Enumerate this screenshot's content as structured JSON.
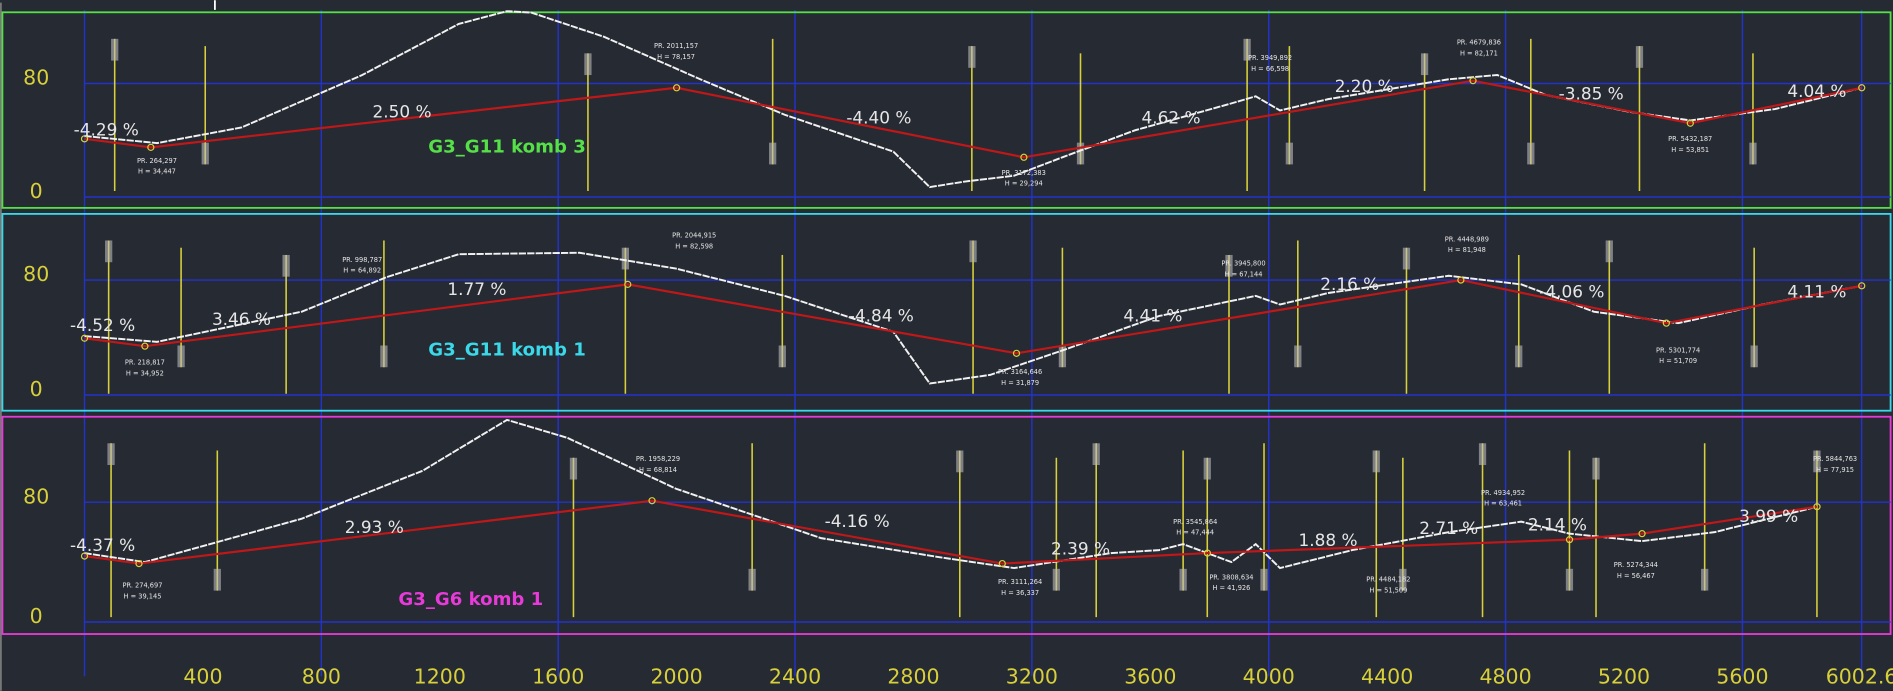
{
  "x_axis": {
    "lim": [
      0,
      6002.6
    ],
    "ticks": [
      400,
      800,
      1200,
      1600,
      2000,
      2400,
      2800,
      3200,
      3600,
      4000,
      4400,
      4800,
      5200,
      5600,
      6002.6
    ]
  },
  "panels": [
    {
      "title": "G3_G11 komb 3",
      "color": "#55e048",
      "yticks": [
        0,
        80
      ],
      "grades": [
        "-4.29 %",
        "2.50 %",
        "-4.40 %",
        "4.62 %",
        "2.20 %",
        "-3.85 %",
        "4.04 %"
      ],
      "vertices": [
        {
          "station": "PR. 264,297",
          "height": "H = 34,447"
        },
        {
          "station": "PR. 2011,157",
          "height": "H = 78,157"
        },
        {
          "station": "PR. 3172,383",
          "height": "H = 29,294"
        },
        {
          "station": "PR. 3949,892",
          "height": "H = 66,598"
        },
        {
          "station": "PR. 4679,836",
          "height": "H = 82,171"
        },
        {
          "station": "PR. 5432,187",
          "height": "H = 53,851"
        }
      ],
      "grade_line": {
        "x": [
          0,
          224,
          2000,
          3173,
          4690,
          5424,
          6003
        ],
        "y": [
          41,
          35,
          77,
          28,
          82,
          52,
          77
        ]
      },
      "terrain": {
        "x": [
          0,
          245,
          530,
          938,
          1264,
          1427,
          1509,
          1754,
          2080,
          2365,
          2732,
          2855,
          2977,
          3140,
          3303,
          3548,
          3874,
          3956,
          4038,
          4201,
          4608,
          4772,
          4935,
          5220,
          5424,
          5710,
          6003
        ],
        "y": [
          43,
          38,
          49,
          86,
          122,
          131,
          130,
          113,
          83,
          58,
          32,
          7,
          11,
          15,
          28,
          47,
          66,
          71,
          61,
          69,
          83,
          86,
          72,
          60,
          54,
          62,
          77
        ]
      }
    },
    {
      "title": "G3_G11 komb 1",
      "color": "#3ad8e8",
      "yticks": [
        0,
        80
      ],
      "grades": [
        "-4.52 %",
        "3.46 %",
        "1.77 %",
        "-4.84 %",
        "4.41 %",
        "2.16 %",
        "-4.06 %",
        "4.11 %"
      ],
      "vertices": [
        {
          "station": "PR. 218,817",
          "height": "H = 34,952"
        },
        {
          "station": "PR. 998,787",
          "height": "H = 64,892"
        },
        {
          "station": "PR. 2044,915",
          "height": "H = 82,598"
        },
        {
          "station": "PR. 3164,646",
          "height": "H = 31,879"
        },
        {
          "station": "PR. 3945,800",
          "height": "H = 67,144"
        },
        {
          "station": "PR. 4448,989",
          "height": "H = 81,948"
        },
        {
          "station": "PR. 5301,774",
          "height": "H = 51,709"
        }
      ],
      "grade_line": {
        "x": [
          0,
          204,
          1835,
          3148,
          4649,
          5343,
          6003
        ],
        "y": [
          39.5,
          34,
          77,
          29,
          80,
          50,
          76
        ]
      },
      "terrain": {
        "x": [
          0,
          245,
          734,
          1020,
          1264,
          1672,
          1998,
          2365,
          2732,
          2855,
          3059,
          3303,
          3630,
          3956,
          4038,
          4201,
          4608,
          4853,
          5098,
          5383,
          5669,
          6003
        ],
        "y": [
          41,
          37,
          58,
          82,
          98,
          99,
          88,
          69,
          44,
          8,
          14,
          31,
          55,
          69,
          63,
          71,
          83,
          77,
          58,
          50,
          63,
          76
        ]
      }
    },
    {
      "title": "G3_G6 komb 1",
      "color": "#e83ad8",
      "yticks": [
        0,
        80
      ],
      "grades": [
        "-4.37 %",
        "2.93 %",
        "-4.16 %",
        "2.39 %",
        "1.88 %",
        "2.71 %",
        "2.14 %",
        "3.99 %"
      ],
      "vertices": [
        {
          "station": "PR. 274,697",
          "height": "H = 39,145"
        },
        {
          "station": "PR. 1958,229",
          "height": "H = 68,814"
        },
        {
          "station": "PR. 3111,264",
          "height": "H = 36,337"
        },
        {
          "station": "PR. 3545,864",
          "height": "H = 47,444"
        },
        {
          "station": "PR. 3808,634",
          "height": "H = 41,926"
        },
        {
          "station": "PR. 4484,182",
          "height": "H = 51,509"
        },
        {
          "station": "PR. 4934,952",
          "height": "H = 63,461"
        },
        {
          "station": "PR. 5274,344",
          "height": "H = 56,467"
        },
        {
          "station": "PR. 5844,763",
          "height": "H = 77,915"
        }
      ],
      "grade_line": {
        "x": [
          0,
          184,
          1917,
          3100,
          3793,
          5016,
          5261,
          5852
        ],
        "y": [
          44,
          39,
          81,
          39,
          46,
          55,
          59,
          77
        ]
      },
      "terrain": {
        "x": [
          0,
          204,
          734,
          1142,
          1427,
          1631,
          1998,
          2488,
          2896,
          3140,
          3467,
          3630,
          3711,
          3874,
          3956,
          4038,
          4282,
          4608,
          4853,
          5016,
          5261,
          5506,
          5852
        ],
        "y": [
          46,
          40,
          69,
          101,
          135,
          123,
          89,
          56,
          43,
          36,
          46,
          48,
          52,
          40,
          52,
          36,
          48,
          60,
          67,
          59,
          54,
          60,
          77
        ]
      }
    }
  ]
}
